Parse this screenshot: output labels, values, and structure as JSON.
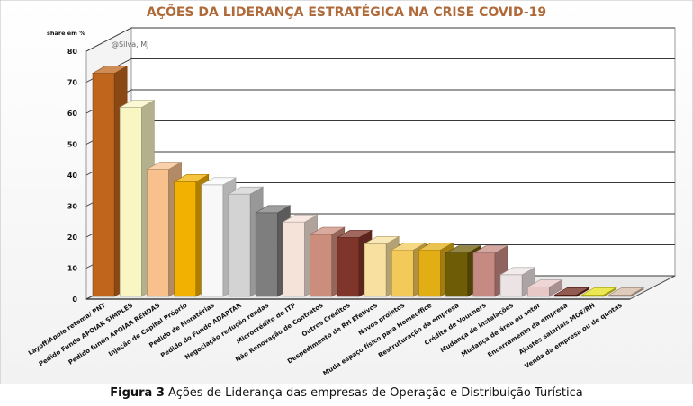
{
  "chart_data": {
    "type": "bar",
    "title": "AÇÕES DA LIDERANÇA ESTRATÉGICA NA CRISE COVID-19",
    "unit_label": "share em %",
    "credit": "@Silva, MJ",
    "ylim": [
      0,
      80
    ],
    "yticks": [
      0,
      10,
      20,
      30,
      40,
      50,
      60,
      70,
      80
    ],
    "grid": true,
    "categories": [
      "Layoff/Apoio retoma/ PNT",
      "Pedido Fundo APOIAR SIMPLES",
      "Pedido fundo APOIAR RENDAS",
      "Injeção de Capital Próprio",
      "Pedido de Moratórias",
      "Pedido do Fundo ADAPTAR",
      "Negociação redução rendas",
      "Microcrédito do ITP",
      "Não Renovação de Contratos",
      "Outros Créditos",
      "Despedimento de RH Efetivos",
      "Novos projetos",
      "Muda espaço físico para Homeoffice",
      "Restruturação da empresa",
      "Crédito de Vouchers",
      "Mudança de instalações",
      "Mudança de área ou setor",
      "Encerramento da empresa",
      "Ajustes salariais MOE/RH",
      "Venda da empresa ou de quotas"
    ],
    "values": [
      72,
      61,
      41,
      37,
      36,
      33,
      27,
      24,
      20,
      19,
      17,
      15,
      15,
      14,
      14,
      7,
      3,
      0.5,
      0.5,
      0.5
    ],
    "colors": [
      "#c0661c",
      "#f9f6c4",
      "#f7c08c",
      "#f2b000",
      "#f8f8f8",
      "#d3d3d3",
      "#7e7e7e",
      "#f5e2d8",
      "#cc8e7c",
      "#80352a",
      "#f8e1a0",
      "#f3c95a",
      "#e2ae16",
      "#6f5c06",
      "#c78a82",
      "#ece4e4",
      "#e8c8c6",
      "#6e2418",
      "#e6e01a",
      "#d4b9a6"
    ]
  },
  "caption": {
    "label": "Figura 3",
    "text": "Ações de Liderança das empresas de Operação e Distribuição Turística"
  }
}
